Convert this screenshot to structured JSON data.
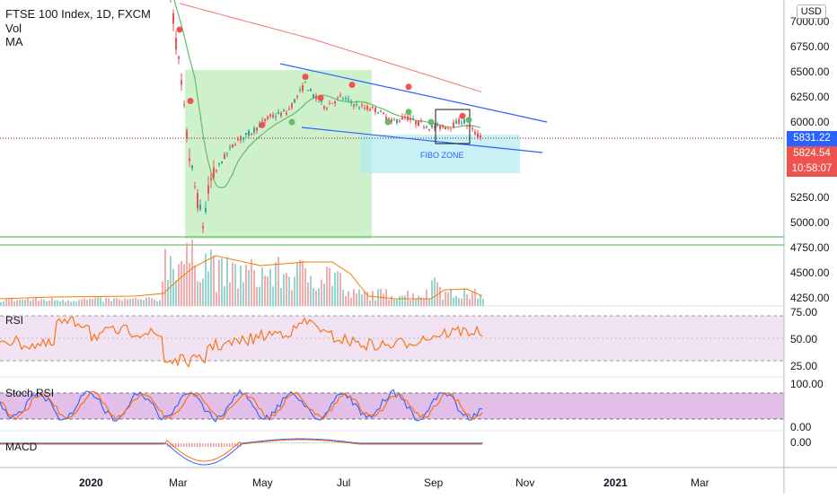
{
  "header": {
    "symbol_line": "FTSE 100 Index, 1D, FXCM",
    "indicators": [
      "Vol",
      "MA"
    ],
    "currency": "USD"
  },
  "price_axis": {
    "ticks": [
      "7000.00",
      "6750.00",
      "6500.00",
      "6250.00",
      "6000.00",
      "5250.00",
      "5000.00",
      "4750.00",
      "4500.00",
      "4250.00"
    ],
    "current_price": "5831.22",
    "bid_price": "5824.54",
    "countdown": "10:58:07"
  },
  "time_axis": {
    "labels": [
      "2020",
      "Mar",
      "May",
      "Jul",
      "Sep",
      "Nov",
      "2021",
      "Mar"
    ]
  },
  "panes": {
    "rsi": {
      "label": "RSI",
      "ticks": [
        "75.00",
        "50.00",
        "25.00"
      ]
    },
    "stoch": {
      "label": "Stoch RSI",
      "ticks": [
        "100.00",
        "0.00"
      ]
    },
    "macd": {
      "label": "MACD",
      "ticks": [
        "0.00"
      ]
    }
  },
  "annotations": {
    "fibo_zone": "FIBO ZONE"
  },
  "colors": {
    "up": "#26a69a",
    "down": "#ef5350",
    "channel": "#2962ff",
    "ma_long": "#ef5350",
    "ma_short": "#66bb6a",
    "volume_ma": "#f57c00",
    "rsi_line": "#ff6d00",
    "rsi_band": "#e1bee7",
    "stoch_k": "#2962ff",
    "stoch_d": "#ff6d00",
    "stoch_band": "#ce93d8",
    "green_zone": "#a5e6a0",
    "fibo_zone": "#b2ebf2",
    "current_tag": "#2962ff",
    "bid_tag": "#ef5350",
    "support_lines": "#4caf50"
  },
  "chart_data": {
    "type": "candlestick",
    "ylim": [
      4000,
      7150
    ],
    "key_prices": [
      {
        "x": "2020-02-20",
        "y": 7400
      },
      {
        "x": "2020-03-23",
        "y": 4900
      },
      {
        "x": "2020-06-08",
        "y": 6450
      },
      {
        "x": "2020-09-01",
        "y": 6000
      },
      {
        "x": "2020-10-02",
        "y": 5831
      }
    ],
    "current_price": 5831.22,
    "support_levels": [
      4750,
      4860
    ],
    "channel": {
      "upper": [
        {
          "x": "2020-05-16",
          "y": 6580
        },
        {
          "x": "2020-11-10",
          "y": 6010
        }
      ],
      "lower": [
        {
          "x": "2020-05-23",
          "y": 5970
        },
        {
          "x": "2020-11-10",
          "y": 5750
        }
      ]
    },
    "fibo_zone_range": [
      5530,
      5880
    ],
    "green_zone_range": [
      4740,
      6530
    ]
  }
}
